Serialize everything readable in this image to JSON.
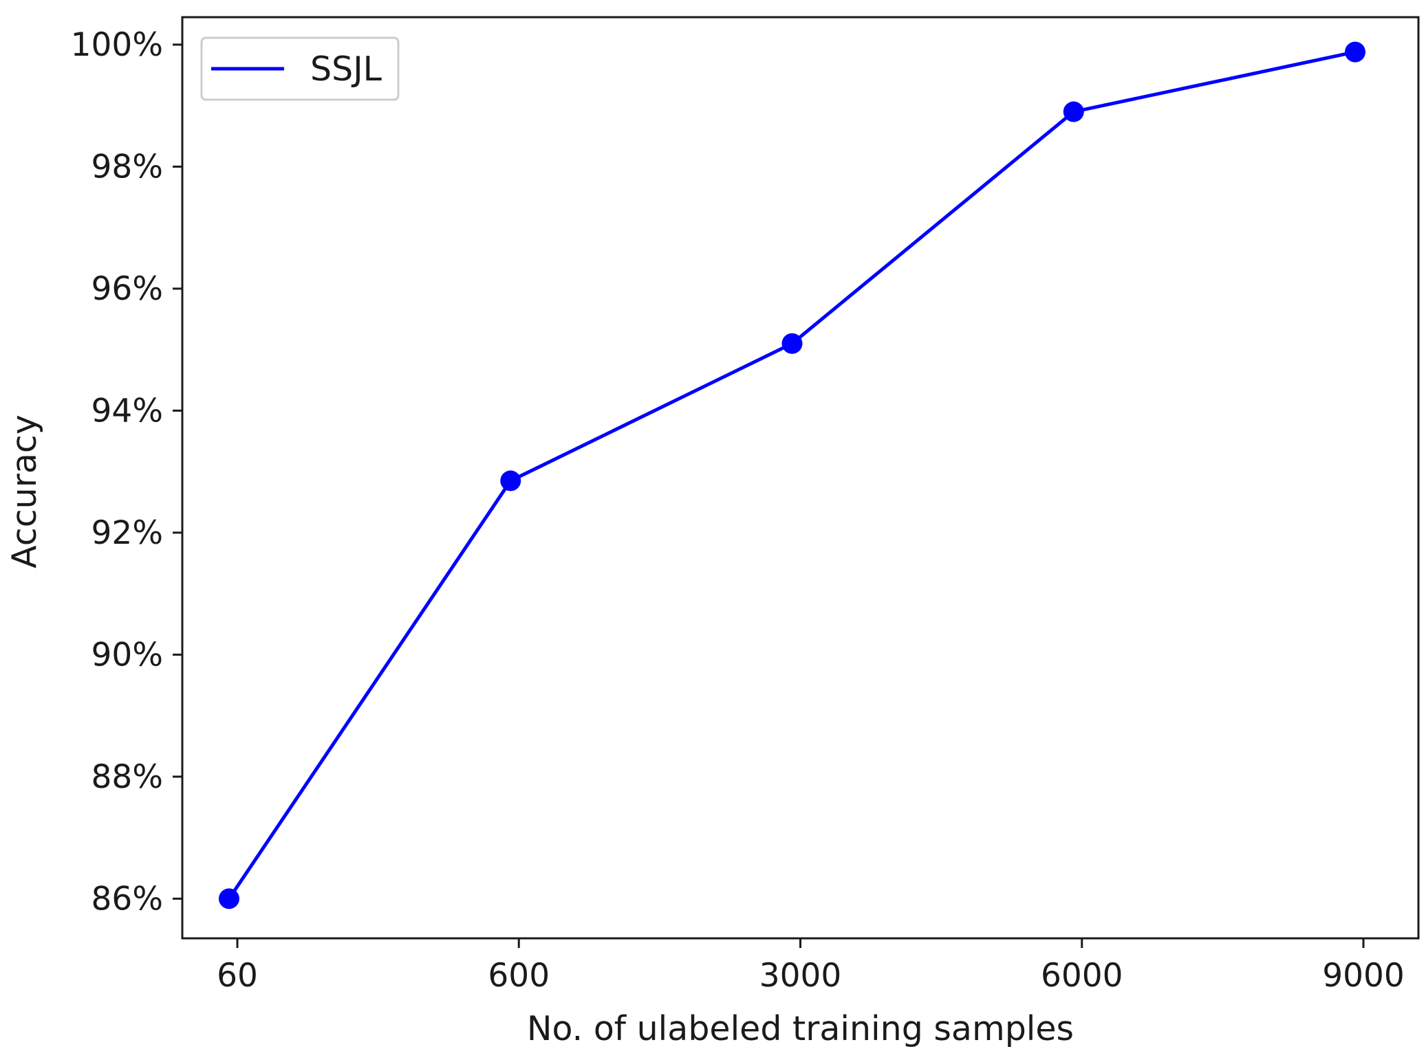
{
  "chart_data": {
    "type": "line",
    "title": "",
    "xlabel": "No. of ulabeled training samples",
    "ylabel": "Accuracy",
    "categories": [
      "60",
      "600",
      "3000",
      "6000",
      "9000"
    ],
    "series": [
      {
        "name": "SSJL",
        "values": [
          86.0,
          92.85,
          95.1,
          98.9,
          99.88
        ]
      }
    ],
    "ylim": [
      85.35,
      100.45
    ],
    "yticks": [
      86,
      88,
      90,
      92,
      94,
      96,
      98,
      100
    ],
    "ytick_labels": [
      "86%",
      "88%",
      "90%",
      "92%",
      "94%",
      "96%",
      "98%",
      "100%"
    ],
    "legend_position": "top-left",
    "grid": false,
    "colors": {
      "series": "#0000ff",
      "axis": "#1a1a1a",
      "legend_frame": "#cccccc"
    },
    "marker": "circle"
  }
}
